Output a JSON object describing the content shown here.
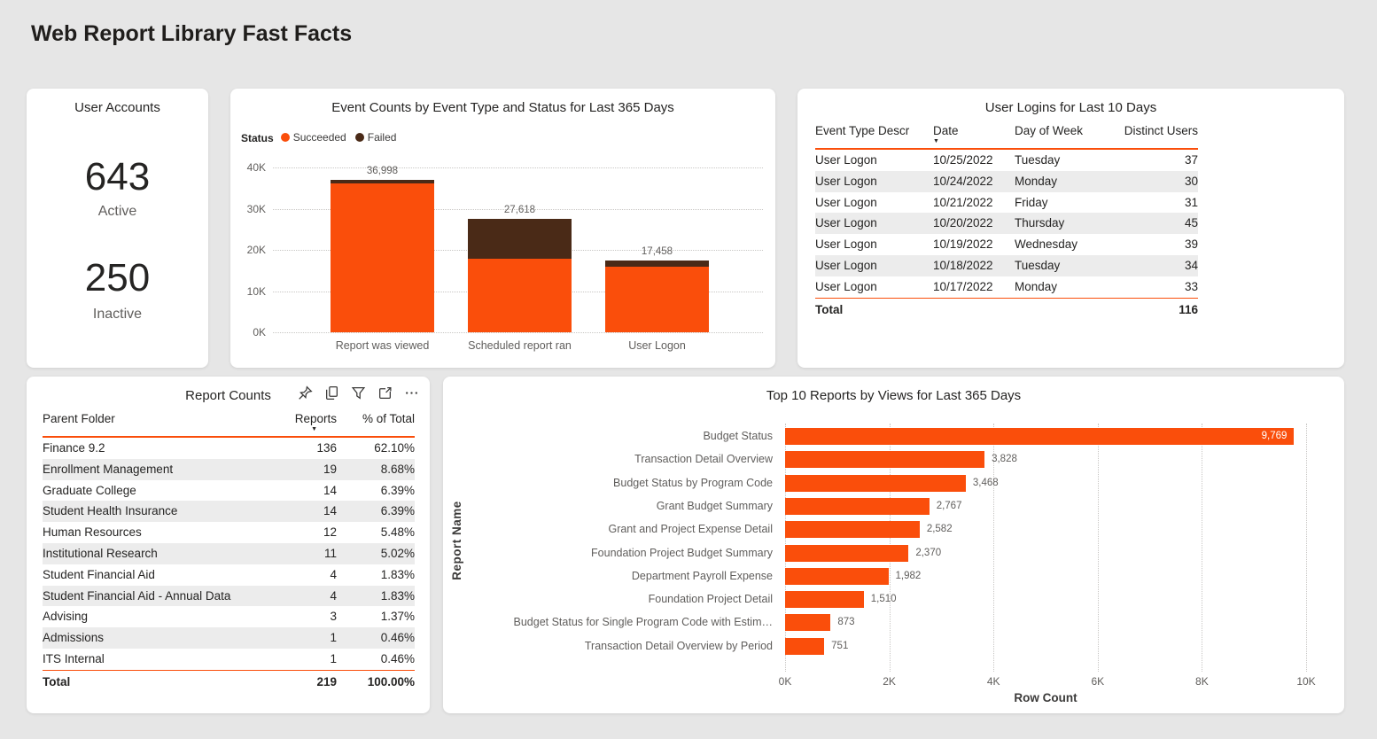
{
  "page": {
    "title": "Web Report Library Fast Facts"
  },
  "colors": {
    "accent_orange": "#FA4E0B",
    "failed_brown": "#4A2A17",
    "page_background": "#E6E6E6",
    "card_background": "#FFFFFF",
    "alt_row": "#ECECEC"
  },
  "user_accounts": {
    "title": "User Accounts",
    "metrics": [
      {
        "value": "643",
        "label": "Active"
      },
      {
        "value": "250",
        "label": "Inactive"
      }
    ]
  },
  "event_counts_card": {
    "title": "Event Counts by Event Type and Status for Last 365 Days",
    "legend_label": "Status",
    "legend_items": [
      {
        "label": "Succeeded",
        "color": "#FA4E0B"
      },
      {
        "label": "Failed",
        "color": "#4A2A17"
      }
    ]
  },
  "user_logins": {
    "title": "User Logins for Last 10 Days",
    "columns": [
      "Event Type Descr",
      "Date",
      "Day of Week",
      "Distinct Users"
    ],
    "sorted_column": "Date",
    "sort_direction": "descending",
    "rows": [
      [
        "User Logon",
        "10/25/2022",
        "Tuesday",
        "37"
      ],
      [
        "User Logon",
        "10/24/2022",
        "Monday",
        "30"
      ],
      [
        "User Logon",
        "10/21/2022",
        "Friday",
        "31"
      ],
      [
        "User Logon",
        "10/20/2022",
        "Thursday",
        "45"
      ],
      [
        "User Logon",
        "10/19/2022",
        "Wednesday",
        "39"
      ],
      [
        "User Logon",
        "10/18/2022",
        "Tuesday",
        "34"
      ],
      [
        "User Logon",
        "10/17/2022",
        "Monday",
        "33"
      ]
    ],
    "total_row": [
      "Total",
      "",
      "",
      "116"
    ]
  },
  "report_counts": {
    "title": "Report Counts",
    "toolbar_icons": [
      "pin",
      "copy",
      "filter",
      "focus-mode",
      "more-options"
    ],
    "columns": [
      "Parent Folder",
      "Reports",
      "% of Total"
    ],
    "sorted_column": "Reports",
    "sort_direction": "descending",
    "rows": [
      [
        "Finance 9.2",
        "136",
        "62.10%"
      ],
      [
        "Enrollment Management",
        "19",
        "8.68%"
      ],
      [
        "Graduate College",
        "14",
        "6.39%"
      ],
      [
        "Student Health Insurance",
        "14",
        "6.39%"
      ],
      [
        "Human Resources",
        "12",
        "5.48%"
      ],
      [
        "Institutional Research",
        "11",
        "5.02%"
      ],
      [
        "Student Financial Aid",
        "4",
        "1.83%"
      ],
      [
        "Student Financial Aid - Annual Data",
        "4",
        "1.83%"
      ],
      [
        "Advising",
        "3",
        "1.37%"
      ],
      [
        "Admissions",
        "1",
        "0.46%"
      ],
      [
        "ITS Internal",
        "1",
        "0.46%"
      ]
    ],
    "total_row": [
      "Total",
      "219",
      "100.00%"
    ]
  },
  "top_reports_card": {
    "title": "Top 10 Reports by Views for Last 365 Days"
  },
  "chart_data": [
    {
      "id": "event_counts",
      "type": "bar",
      "stacked": true,
      "title": "Event Counts by Event Type and Status for Last 365 Days",
      "categories": [
        "Report was viewed",
        "Scheduled report ran",
        "User Logon"
      ],
      "series": [
        {
          "name": "Succeeded",
          "color": "#FA4E0B",
          "values": [
            36100,
            17900,
            16000
          ]
        },
        {
          "name": "Failed",
          "color": "#4A2A17",
          "values": [
            898,
            9718,
            1458
          ]
        }
      ],
      "totals": [
        36998,
        27618,
        17458
      ],
      "total_labels": [
        "36,998",
        "27,618",
        "17,458"
      ],
      "y_ticks": [
        "0K",
        "10K",
        "20K",
        "30K",
        "40K"
      ],
      "ylim": [
        0,
        40000
      ],
      "legend_label": "Status",
      "legend_position": "top-left",
      "grid": "dotted-horizontal"
    },
    {
      "id": "top_reports",
      "type": "bar-horizontal",
      "title": "Top 10 Reports by Views for Last 365 Days",
      "categories": [
        "Budget Status",
        "Transaction Detail Overview",
        "Budget Status by Program Code",
        "Grant Budget Summary",
        "Grant and Project Expense Detail",
        "Foundation Project Budget Summary",
        "Department Payroll Expense",
        "Foundation Project Detail",
        "Budget Status for Single Program Code with Estim…",
        "Transaction Detail Overview by Period"
      ],
      "values": [
        9769,
        3828,
        3468,
        2767,
        2582,
        2370,
        1982,
        1510,
        873,
        751
      ],
      "value_labels": [
        "9,769",
        "3,828",
        "3,468",
        "2,767",
        "2,582",
        "2,370",
        "1,982",
        "1,510",
        "873",
        "751"
      ],
      "xlabel": "Row Count",
      "ylabel": "Report Name",
      "x_ticks": [
        "0K",
        "2K",
        "4K",
        "6K",
        "8K",
        "10K"
      ],
      "xlim": [
        0,
        10000
      ],
      "bar_color": "#FA4E0B",
      "grid": "dotted-vertical"
    }
  ]
}
